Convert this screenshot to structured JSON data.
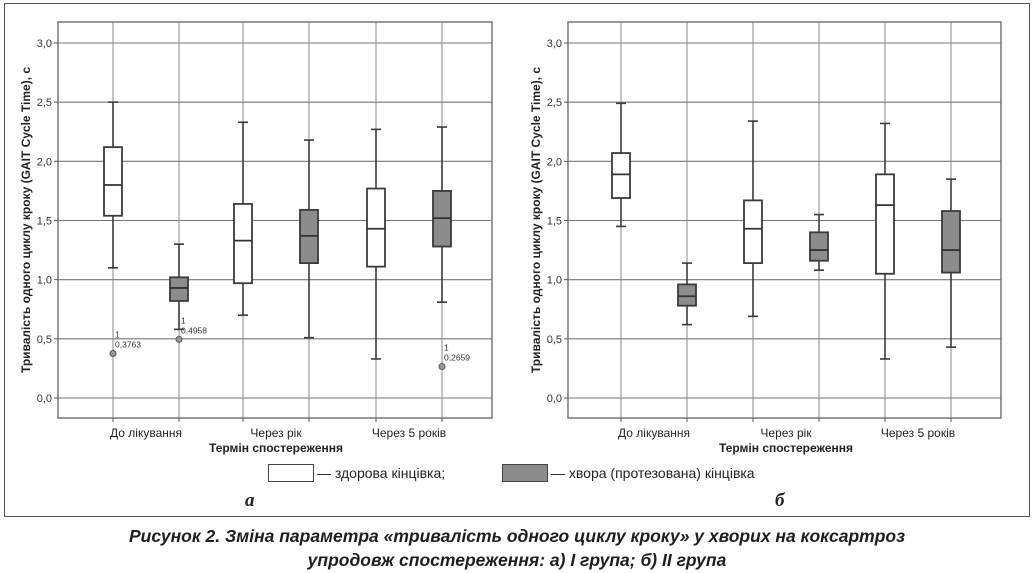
{
  "figure": {
    "caption_line1": "Рисунок 2. Зміна параметра «тривалість одного циклу кроку» у хворих на коксартроз",
    "caption_line2": "упродовж спостереження: а) І група; б) ІІ група",
    "legend": {
      "healthy_label": "— здорова кінцівка;",
      "sick_label": "— хвора (протезована) кінцівка",
      "healthy_color": "#ffffff",
      "sick_color": "#8c8c8c"
    }
  },
  "chart_data": [
    {
      "type": "boxplot",
      "panel": "а",
      "xlabel": "Термін спостереження",
      "ylabel": "Тривалість одного циклу кроку (GAIT Cycle Time), с",
      "ylim": [
        -0.2,
        3.1
      ],
      "yticks": [
        "0,0",
        "0,5",
        "1,0",
        "1,5",
        "2,0",
        "2,5",
        "3,0"
      ],
      "categories": [
        "До лікування",
        "Через рік",
        "Через 5 років"
      ],
      "grid": true,
      "series": [
        {
          "name": "здорова кінцівка",
          "color": "#ffffff",
          "boxes": [
            {
              "min": 1.1,
              "q1": 1.54,
              "median": 1.8,
              "q3": 2.12,
              "max": 2.5,
              "outliers": [
                {
                  "value": 0.3763,
                  "label_id": "1",
                  "label_value": "0,3763"
                }
              ]
            },
            {
              "min": 0.7,
              "q1": 0.97,
              "median": 1.33,
              "q3": 1.64,
              "max": 2.33,
              "outliers": []
            },
            {
              "min": 0.33,
              "q1": 1.11,
              "median": 1.43,
              "q3": 1.77,
              "max": 2.27,
              "outliers": []
            }
          ]
        },
        {
          "name": "хвора (протезована) кінцівка",
          "color": "#8c8c8c",
          "boxes": [
            {
              "min": 0.58,
              "q1": 0.82,
              "median": 0.93,
              "q3": 1.02,
              "max": 1.3,
              "outliers": [
                {
                  "value": 0.4958,
                  "label_id": "1",
                  "label_value": "0,4958"
                }
              ]
            },
            {
              "min": 0.51,
              "q1": 1.14,
              "median": 1.37,
              "q3": 1.59,
              "max": 2.18,
              "outliers": []
            },
            {
              "min": 0.81,
              "q1": 1.28,
              "median": 1.52,
              "q3": 1.75,
              "max": 2.29,
              "outliers": [
                {
                  "value": 0.2659,
                  "label_id": "1",
                  "label_value": "0,2659"
                }
              ]
            }
          ]
        }
      ]
    },
    {
      "type": "boxplot",
      "panel": "б",
      "xlabel": "Термін спостереження",
      "ylabel": "Тривалість одного циклу кроку (GAIT Cycle Time), с",
      "ylim": [
        -0.2,
        3.1
      ],
      "yticks": [
        "0,0",
        "0,5",
        "1,0",
        "1,5",
        "2,0",
        "2,5",
        "3,0"
      ],
      "categories": [
        "До лікування",
        "Через рік",
        "Через 5 років"
      ],
      "grid": true,
      "series": [
        {
          "name": "здорова кінцівка",
          "color": "#ffffff",
          "boxes": [
            {
              "min": 1.45,
              "q1": 1.69,
              "median": 1.89,
              "q3": 2.07,
              "max": 2.49,
              "outliers": []
            },
            {
              "min": 0.69,
              "q1": 1.14,
              "median": 1.43,
              "q3": 1.67,
              "max": 2.34,
              "outliers": []
            },
            {
              "min": 0.33,
              "q1": 1.05,
              "median": 1.63,
              "q3": 1.89,
              "max": 2.32,
              "outliers": []
            }
          ]
        },
        {
          "name": "хвора (протезована) кінцівка",
          "color": "#8c8c8c",
          "boxes": [
            {
              "min": 0.62,
              "q1": 0.78,
              "median": 0.86,
              "q3": 0.96,
              "max": 1.14,
              "outliers": []
            },
            {
              "min": 1.08,
              "q1": 1.16,
              "median": 1.25,
              "q3": 1.4,
              "max": 1.55,
              "outliers": []
            },
            {
              "min": 0.43,
              "q1": 1.06,
              "median": 1.25,
              "q3": 1.58,
              "max": 1.85,
              "outliers": []
            }
          ]
        }
      ]
    }
  ]
}
